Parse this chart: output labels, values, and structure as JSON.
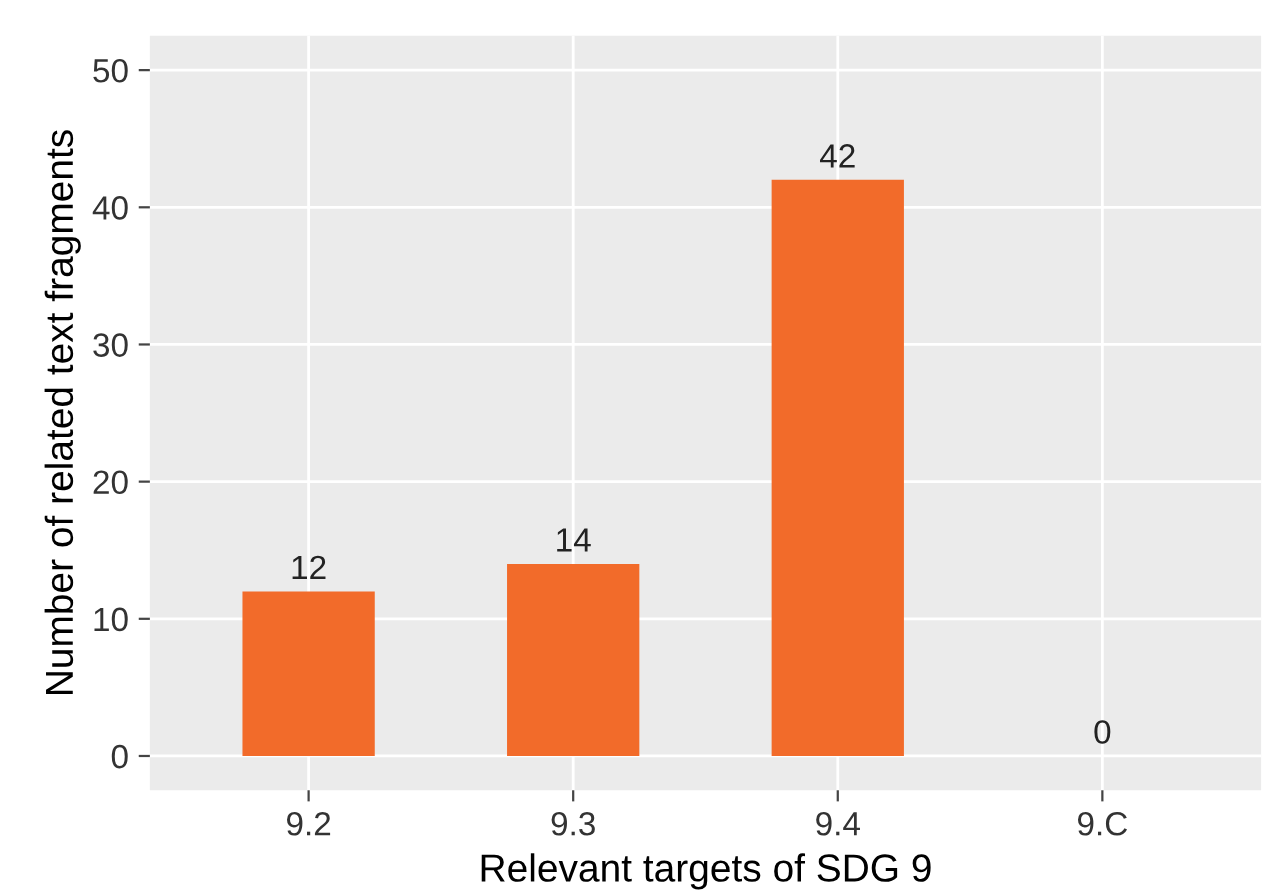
{
  "chart_data": {
    "type": "bar",
    "xlabel": "Relevant targets of SDG 9",
    "ylabel": "Number of related text fragments",
    "categories": [
      "9.2",
      "9.3",
      "9.4",
      "9.C"
    ],
    "values": [
      12,
      14,
      42,
      0
    ],
    "color": "#f26b2a",
    "ylim": [
      -2.5,
      52.5
    ],
    "yticks": [
      0,
      10,
      20,
      30,
      40,
      50
    ],
    "grid": true,
    "data_labels": true
  }
}
